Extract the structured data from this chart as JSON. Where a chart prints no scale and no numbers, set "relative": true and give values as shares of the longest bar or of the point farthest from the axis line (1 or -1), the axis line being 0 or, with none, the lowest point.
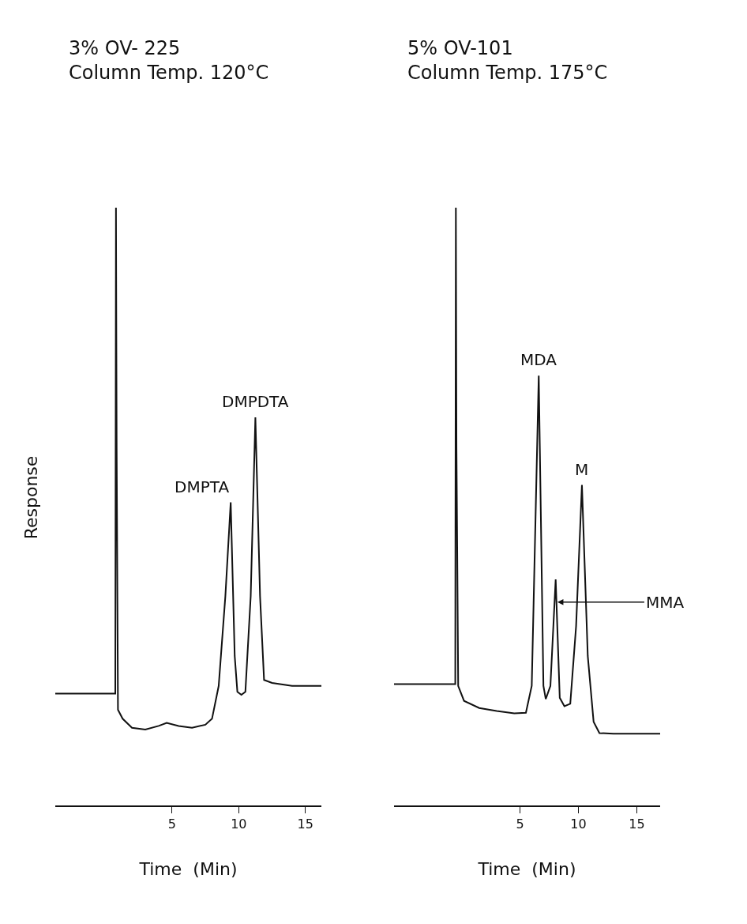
{
  "chart_data": [
    {
      "type": "line",
      "title": "3% OV- 225",
      "subtitle": "Column Temp. 120°C",
      "xlabel": "Time  (Min)",
      "ylabel": "Response",
      "relative": true,
      "color": "#111111",
      "x": [
        -3.75,
        0.75,
        0.8,
        0.85,
        0.95,
        1.3,
        2.0,
        3.0,
        4.0,
        4.6,
        5.5,
        6.5,
        7.5,
        8.0,
        8.5,
        9.0,
        9.4,
        9.7,
        9.9,
        10.2,
        10.5,
        10.9,
        11.25,
        11.6,
        11.9,
        12.5,
        14.0,
        16.2
      ],
      "values": [
        0.187,
        0.187,
        1.0,
        0.6,
        0.16,
        0.145,
        0.13,
        0.127,
        0.133,
        0.138,
        0.133,
        0.13,
        0.135,
        0.145,
        0.2,
        0.35,
        0.507,
        0.25,
        0.19,
        0.185,
        0.19,
        0.35,
        0.649,
        0.35,
        0.21,
        0.205,
        0.2,
        0.2
      ],
      "xlim": [
        -3.75,
        16.2
      ],
      "xticks": [
        5,
        10,
        15
      ],
      "annotations": [
        {
          "text": "DMPTA",
          "x": 9.4,
          "y": 0.507
        },
        {
          "text": "DMPDTA",
          "x": 11.25,
          "y": 0.649
        }
      ]
    },
    {
      "type": "line",
      "title": "5% OV-101",
      "subtitle": "Column Temp. 175°C",
      "xlabel": "Time  (Min)",
      "relative": true,
      "color": "#111111",
      "x": [
        -5.8,
        -0.55,
        -0.5,
        -0.45,
        -0.3,
        0.2,
        1.5,
        3.0,
        4.5,
        5.5,
        6.0,
        6.6,
        7.0,
        7.2,
        7.6,
        8.05,
        8.4,
        8.8,
        9.3,
        9.8,
        10.3,
        10.8,
        11.3,
        11.8,
        13.0,
        17.0
      ],
      "values": [
        0.203,
        0.203,
        1.0,
        0.6,
        0.2,
        0.175,
        0.163,
        0.158,
        0.154,
        0.155,
        0.2,
        0.719,
        0.2,
        0.178,
        0.2,
        0.378,
        0.18,
        0.166,
        0.17,
        0.3,
        0.536,
        0.25,
        0.14,
        0.121,
        0.12,
        0.12
      ],
      "xlim": [
        -5.8,
        17.0
      ],
      "xticks": [
        5,
        10,
        15
      ],
      "annotations": [
        {
          "text": "MDA",
          "x": 6.6,
          "y": 0.719
        },
        {
          "text": "MMA",
          "x": 8.2,
          "y": 0.34
        },
        {
          "text": "M",
          "x": 10.3,
          "y": 0.536
        }
      ]
    }
  ]
}
